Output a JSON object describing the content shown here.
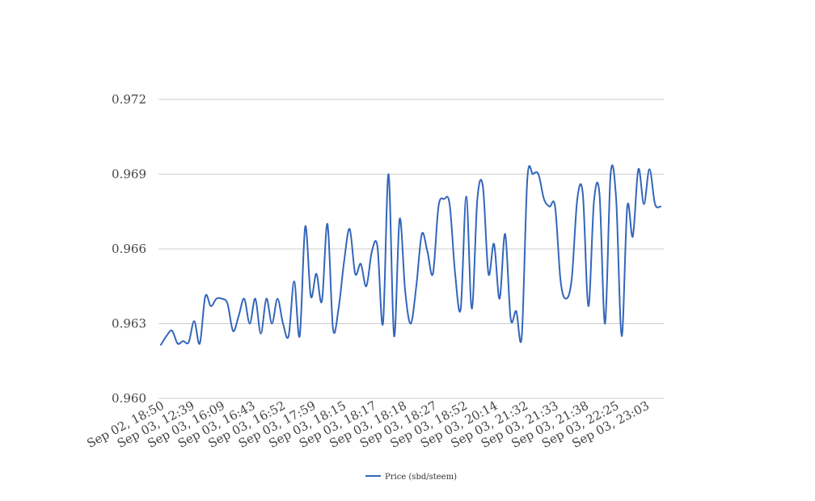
{
  "chart_data": {
    "type": "line",
    "title": "",
    "xlabel": "",
    "ylabel": "",
    "ylim": [
      0.96,
      0.972
    ],
    "y_ticks": [
      "0.960",
      "0.963",
      "0.966",
      "0.969",
      "0.972"
    ],
    "x_tick_labels": [
      "Sep 02, 18:50",
      "Sep 03, 12:39",
      "Sep 03, 16:09",
      "Sep 03, 16:43",
      "Sep 03, 16:52",
      "Sep 03, 17:59",
      "Sep 03, 18:15",
      "Sep 03, 18:17",
      "Sep 03, 18:18",
      "Sep 03, 18:27",
      "Sep 03, 18:52",
      "Sep 03, 20:14",
      "Sep 03, 21:32",
      "Sep 03, 21:33",
      "Sep 03, 21:38",
      "Sep 03, 22:25",
      "Sep 03, 23:03"
    ],
    "grid": true,
    "legend_position": "bottom-center",
    "series": [
      {
        "name": "Price (sbd/steem)",
        "color": "#3366bb",
        "values": [
          0.96215,
          0.9625,
          0.96272,
          0.9622,
          0.9623,
          0.96225,
          0.9631,
          0.9622,
          0.9641,
          0.9637,
          0.964,
          0.964,
          0.9638,
          0.9627,
          0.9633,
          0.964,
          0.963,
          0.964,
          0.9626,
          0.964,
          0.963,
          0.964,
          0.963,
          0.9625,
          0.9647,
          0.9625,
          0.9669,
          0.9641,
          0.965,
          0.9639,
          0.967,
          0.9628,
          0.9636,
          0.9655,
          0.9668,
          0.965,
          0.9654,
          0.9645,
          0.9659,
          0.9661,
          0.963,
          0.969,
          0.9625,
          0.9672,
          0.9643,
          0.963,
          0.9645,
          0.9666,
          0.9659,
          0.965,
          0.9677,
          0.968,
          0.9678,
          0.965,
          0.9636,
          0.9681,
          0.9636,
          0.968,
          0.9685,
          0.965,
          0.9662,
          0.964,
          0.9666,
          0.9632,
          0.9635,
          0.9625,
          0.9688,
          0.969,
          0.969,
          0.968,
          0.9677,
          0.9677,
          0.9647,
          0.964,
          0.9648,
          0.968,
          0.9682,
          0.9637,
          0.9679,
          0.9682,
          0.963,
          0.969,
          0.968,
          0.9625,
          0.9677,
          0.9665,
          0.9692,
          0.9678,
          0.9692,
          0.9678,
          0.9677
        ]
      }
    ]
  }
}
